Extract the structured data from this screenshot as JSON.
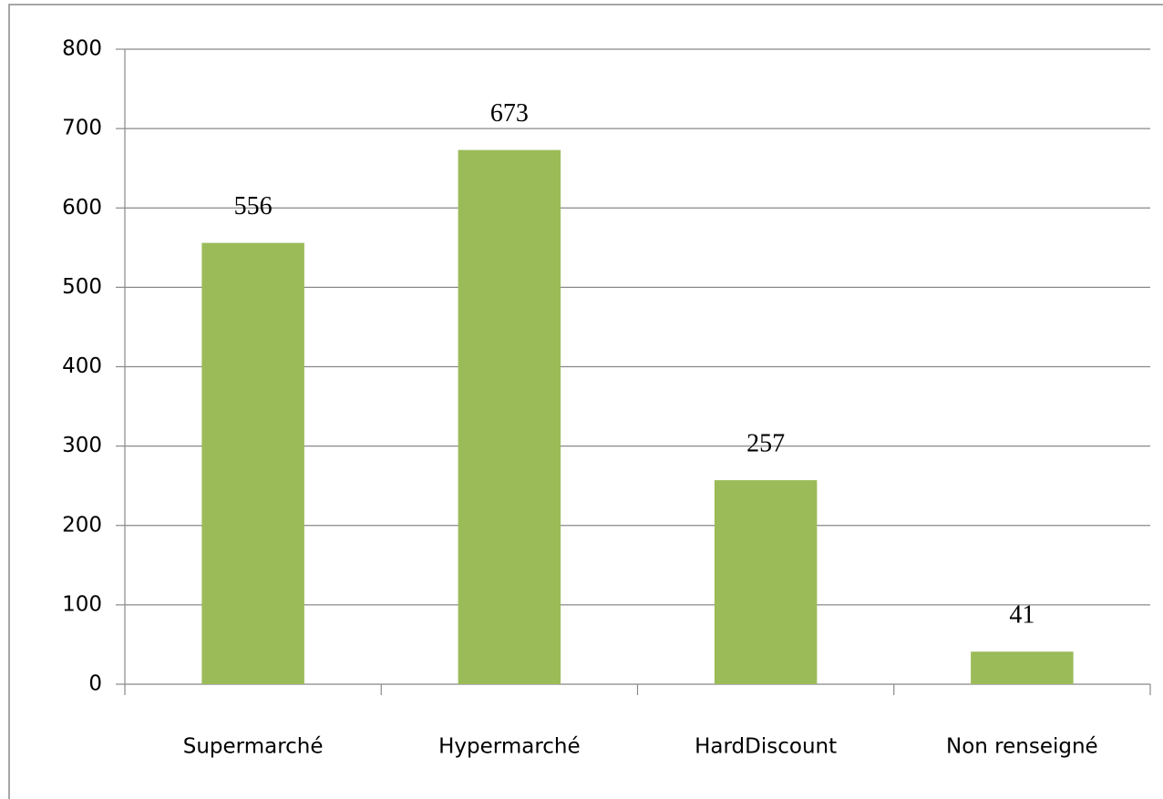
{
  "chart_data": {
    "type": "bar",
    "categories": [
      "Supermarché",
      "Hypermarché",
      "HardDiscount",
      "Non renseigné"
    ],
    "values": [
      556,
      673,
      257,
      41
    ],
    "color": "#9bbb59",
    "ylim": [
      0,
      800
    ],
    "yticks": [
      0,
      100,
      200,
      300,
      400,
      500,
      600,
      700,
      800
    ],
    "grid": true
  }
}
